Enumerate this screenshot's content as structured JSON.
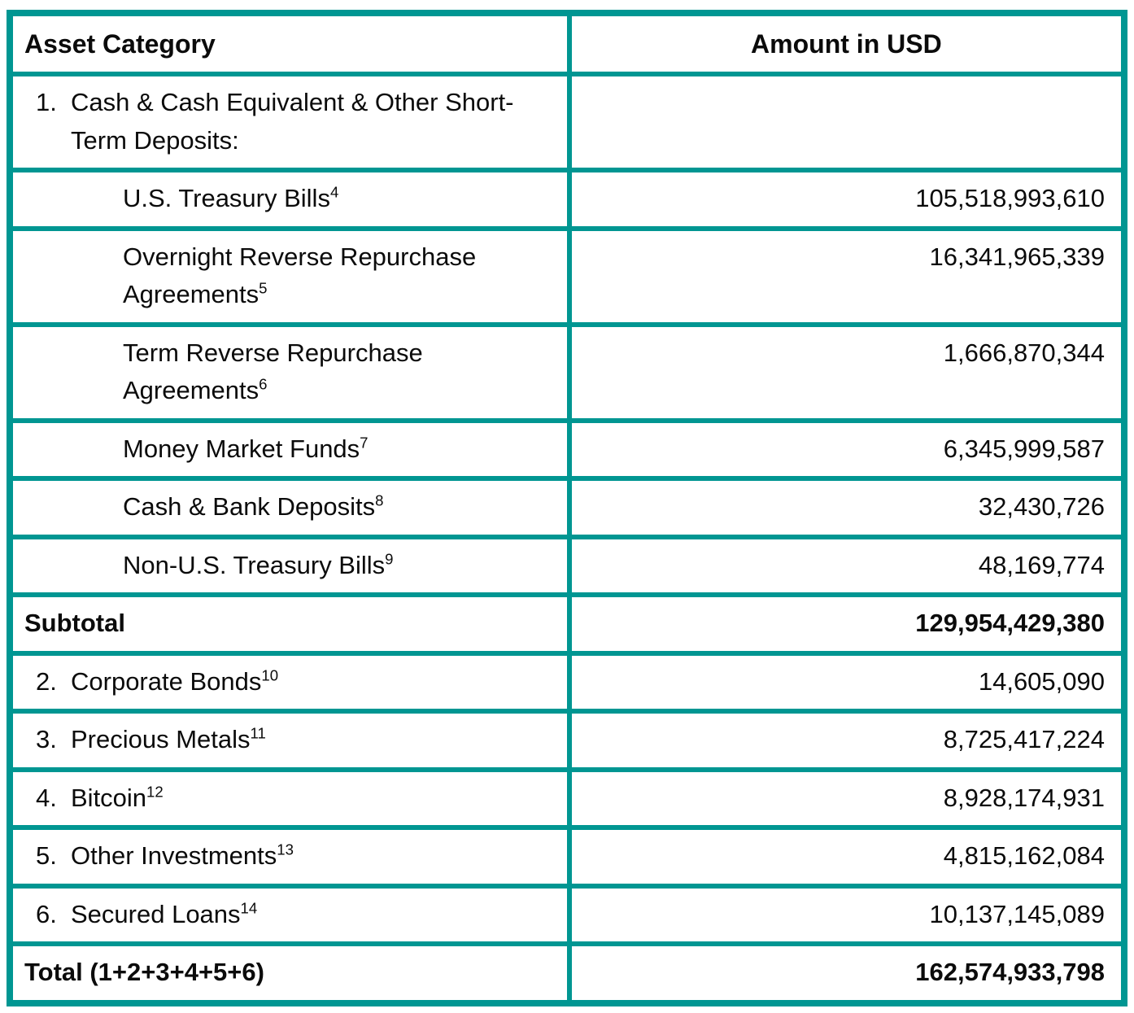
{
  "table": {
    "border_color": "#009692",
    "text_color": "#0b0b0b",
    "columns": [
      "Asset Category",
      "Amount in USD"
    ],
    "rows": [
      {
        "number": "1.",
        "label": "Cash & Cash Equivalent & Other Short-Term Deposits:",
        "footnote": "",
        "amount": "",
        "style": "numbered"
      },
      {
        "number": "",
        "label": "U.S. Treasury Bills",
        "footnote": "4",
        "amount": "105,518,993,610",
        "style": "sub"
      },
      {
        "number": "",
        "label": "Overnight Reverse Repurchase Agreements",
        "footnote": "5",
        "amount": "16,341,965,339",
        "style": "sub"
      },
      {
        "number": "",
        "label": "Term Reverse Repurchase Agreements",
        "footnote": "6",
        "amount": "1,666,870,344",
        "style": "sub"
      },
      {
        "number": "",
        "label": "Money Market Funds",
        "footnote": "7",
        "amount": "6,345,999,587",
        "style": "sub"
      },
      {
        "number": "",
        "label": "Cash & Bank Deposits",
        "footnote": "8",
        "amount": "32,430,726",
        "style": "sub"
      },
      {
        "number": "",
        "label": "Non-U.S. Treasury Bills",
        "footnote": "9",
        "amount": "48,169,774",
        "style": "sub"
      },
      {
        "number": "",
        "label": "Subtotal",
        "footnote": "",
        "amount": "129,954,429,380",
        "style": "total"
      },
      {
        "number": "2.",
        "label": "Corporate Bonds",
        "footnote": "10",
        "amount": "14,605,090",
        "style": "numbered"
      },
      {
        "number": "3.",
        "label": "Precious Metals",
        "footnote": "11",
        "amount": "8,725,417,224",
        "style": "numbered"
      },
      {
        "number": "4.",
        "label": "Bitcoin",
        "footnote": "12",
        "amount": "8,928,174,931",
        "style": "numbered"
      },
      {
        "number": "5.",
        "label": "Other Investments",
        "footnote": "13",
        "amount": "4,815,162,084",
        "style": "numbered"
      },
      {
        "number": "6.",
        "label": "Secured Loans",
        "footnote": "14",
        "amount": "10,137,145,089",
        "style": "numbered"
      },
      {
        "number": "",
        "label": "Total (1+2+3+4+5+6)",
        "footnote": "",
        "amount": "162,574,933,798",
        "style": "total"
      }
    ]
  }
}
